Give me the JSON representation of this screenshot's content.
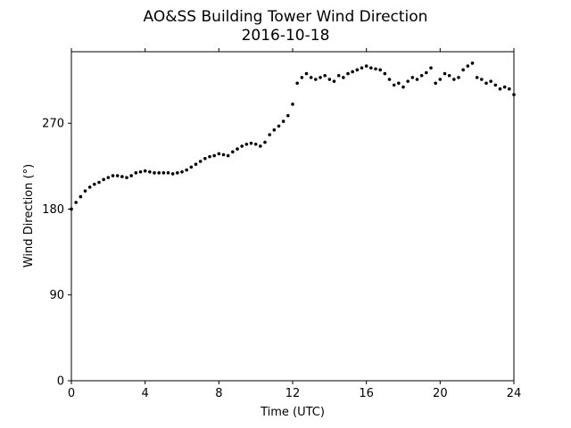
{
  "chart_data": {
    "type": "scatter",
    "title": "AO&SS Building Tower Wind Direction",
    "subtitle": "2016-10-18",
    "xlabel": "Time (UTC)",
    "ylabel": "Wind Direction (°)",
    "xlim": [
      0,
      24
    ],
    "ylim": [
      0,
      345
    ],
    "xticks": [
      0,
      4,
      8,
      12,
      16,
      20,
      24
    ],
    "yticks": [
      0,
      90,
      180,
      270
    ],
    "grid": false,
    "legend": "none",
    "marker_color": "#000000",
    "series": [
      {
        "x": [
          0,
          0.25,
          0.5,
          0.75,
          1,
          1.25,
          1.5,
          1.75,
          2,
          2.25,
          2.5,
          2.75,
          3,
          3.25,
          3.5,
          3.75,
          4,
          4.25,
          4.5,
          4.75,
          5,
          5.25,
          5.5,
          5.75,
          6,
          6.25,
          6.5,
          6.75,
          7,
          7.25,
          7.5,
          7.75,
          8,
          8.25,
          8.5,
          8.75,
          9,
          9.25,
          9.5,
          9.75,
          10,
          10.25,
          10.5,
          10.75,
          11,
          11.25,
          11.5,
          11.75,
          12,
          12.25,
          12.5,
          12.75,
          13,
          13.25,
          13.5,
          13.75,
          14,
          14.25,
          14.5,
          14.75,
          15,
          15.25,
          15.5,
          15.75,
          16,
          16.25,
          16.5,
          16.75,
          17,
          17.25,
          17.5,
          17.75,
          18,
          18.25,
          18.5,
          18.75,
          19,
          19.25,
          19.5,
          19.75,
          20,
          20.25,
          20.5,
          20.75,
          21,
          21.25,
          21.5,
          21.75,
          22,
          22.25,
          22.5,
          22.75,
          23,
          23.25,
          23.5,
          23.75,
          24
        ],
        "y": [
          180,
          187,
          193,
          199,
          203,
          206,
          208,
          211,
          213,
          215,
          215,
          214,
          213,
          215,
          218,
          219,
          220,
          219,
          218,
          218,
          218,
          218,
          217,
          218,
          219,
          221,
          224,
          227,
          230,
          233,
          235,
          236,
          238,
          237,
          236,
          240,
          243,
          246,
          248,
          249,
          248,
          246,
          250,
          258,
          263,
          267,
          272,
          278,
          290,
          312,
          318,
          322,
          318,
          316,
          318,
          320,
          316,
          314,
          320,
          318,
          322,
          324,
          326,
          328,
          330,
          328,
          327,
          326,
          322,
          316,
          310,
          312,
          308,
          314,
          318,
          316,
          320,
          323,
          328,
          312,
          316,
          322,
          320,
          316,
          318,
          326,
          330,
          333,
          318,
          316,
          312,
          314,
          310,
          306,
          308,
          306,
          300
        ]
      }
    ]
  }
}
